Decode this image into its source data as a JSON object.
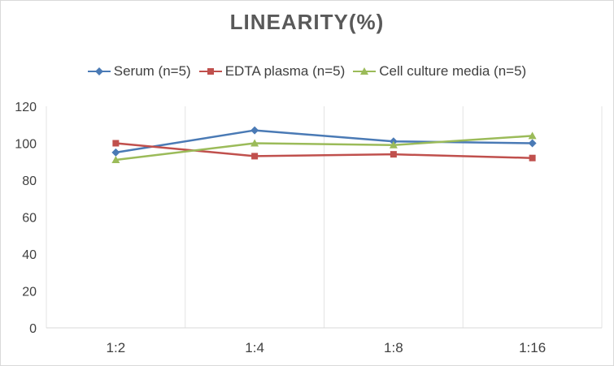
{
  "chart_data": {
    "type": "line",
    "title": "LINEARITY(%)",
    "xlabel": "",
    "ylabel": "",
    "categories": [
      "1:2",
      "1:4",
      "1:8",
      "1:16"
    ],
    "ylim": [
      0,
      120
    ],
    "yticks": [
      0,
      20,
      40,
      60,
      80,
      100,
      120
    ],
    "grid": "vertical",
    "legend_position": "top",
    "series": [
      {
        "name": "Serum (n=5)",
        "color": "#4a7ab5",
        "marker": "diamond",
        "values": [
          95,
          107,
          101,
          100
        ]
      },
      {
        "name": "EDTA plasma (n=5)",
        "color": "#c0504d",
        "marker": "square",
        "values": [
          100,
          93,
          94,
          92
        ]
      },
      {
        "name": "Cell culture media (n=5)",
        "color": "#9bbb59",
        "marker": "triangle",
        "values": [
          91,
          100,
          99,
          104
        ]
      }
    ]
  }
}
